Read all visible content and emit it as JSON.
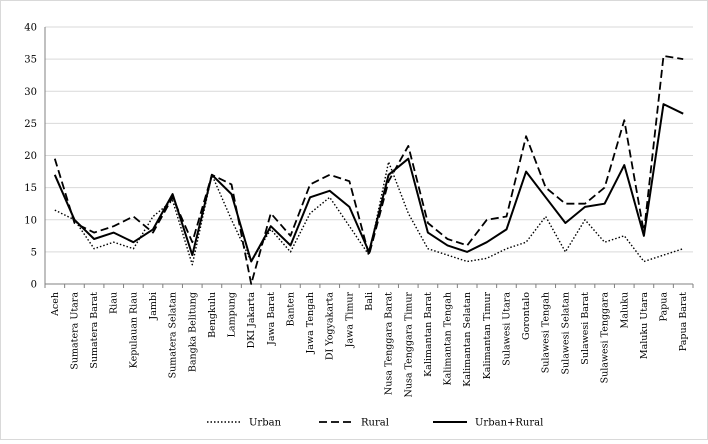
{
  "chart_data": {
    "type": "line",
    "ylim": [
      0,
      40
    ],
    "yticks": [
      "0",
      "5",
      "10",
      "15",
      "20",
      "25",
      "30",
      "35",
      "40"
    ],
    "grid": true,
    "legend_position": "bottom",
    "categories": [
      "Aceh",
      "Sumatera Utara",
      "Sumatera Barat",
      "Riau",
      "Kepulauan Riau",
      "Jambi",
      "Sumatera Selatan",
      "Bangka Belitung",
      "Bengkulu",
      "Lampung",
      "DKI Jakarta",
      "Jawa Barat",
      "Banten",
      "Jawa Tengah",
      "DI Yogyakarta",
      "Jawa Timur",
      "Bali",
      "Nusa Tenggara Barat",
      "Nusa Tenggara Timur",
      "Kalimantan Barat",
      "Kalimantan Tengah",
      "Kalimantan Selatan",
      "Kalimantan Timur",
      "Sulawesi Utara",
      "Gorontalo",
      "Sulawesi Tengah",
      "Sulawesi Selatan",
      "Sulawesi Barat",
      "Sulawesi Tenggara",
      "Maluku",
      "Maluku Utara",
      "Papua",
      "Papua Barat"
    ],
    "series": [
      {
        "name": "Urban",
        "style": "dotted",
        "values": [
          11.5,
          10,
          5.5,
          6.5,
          5.5,
          10.5,
          13,
          3,
          17,
          10,
          3.5,
          8.5,
          5,
          11,
          13.5,
          9,
          4.5,
          19,
          11,
          5.5,
          4.5,
          3.5,
          4,
          5.5,
          6.5,
          10.5,
          5,
          10,
          6.5,
          7.5,
          3.5,
          4.5,
          5.5
        ]
      },
      {
        "name": "Rural",
        "style": "dashed",
        "values": [
          19.5,
          9.5,
          8,
          9,
          10.5,
          8,
          13.5,
          6.5,
          17,
          15.5,
          0,
          11,
          7.5,
          15.5,
          17,
          16,
          4.5,
          16,
          21.5,
          9.5,
          7,
          6,
          10,
          10.5,
          23,
          15,
          12.5,
          12.5,
          15,
          25.5,
          8,
          35.5,
          35
        ]
      },
      {
        "name": "Urban+Rural",
        "style": "solid",
        "values": [
          17,
          10,
          7,
          8,
          6.5,
          8.5,
          14,
          4.5,
          17,
          14,
          3.5,
          9,
          6,
          13.5,
          14.5,
          12,
          5,
          17,
          19.5,
          8,
          6,
          5,
          6.5,
          8.5,
          17.5,
          13.5,
          9.5,
          12,
          12.5,
          18.5,
          7.5,
          28,
          26.5
        ]
      }
    ]
  }
}
